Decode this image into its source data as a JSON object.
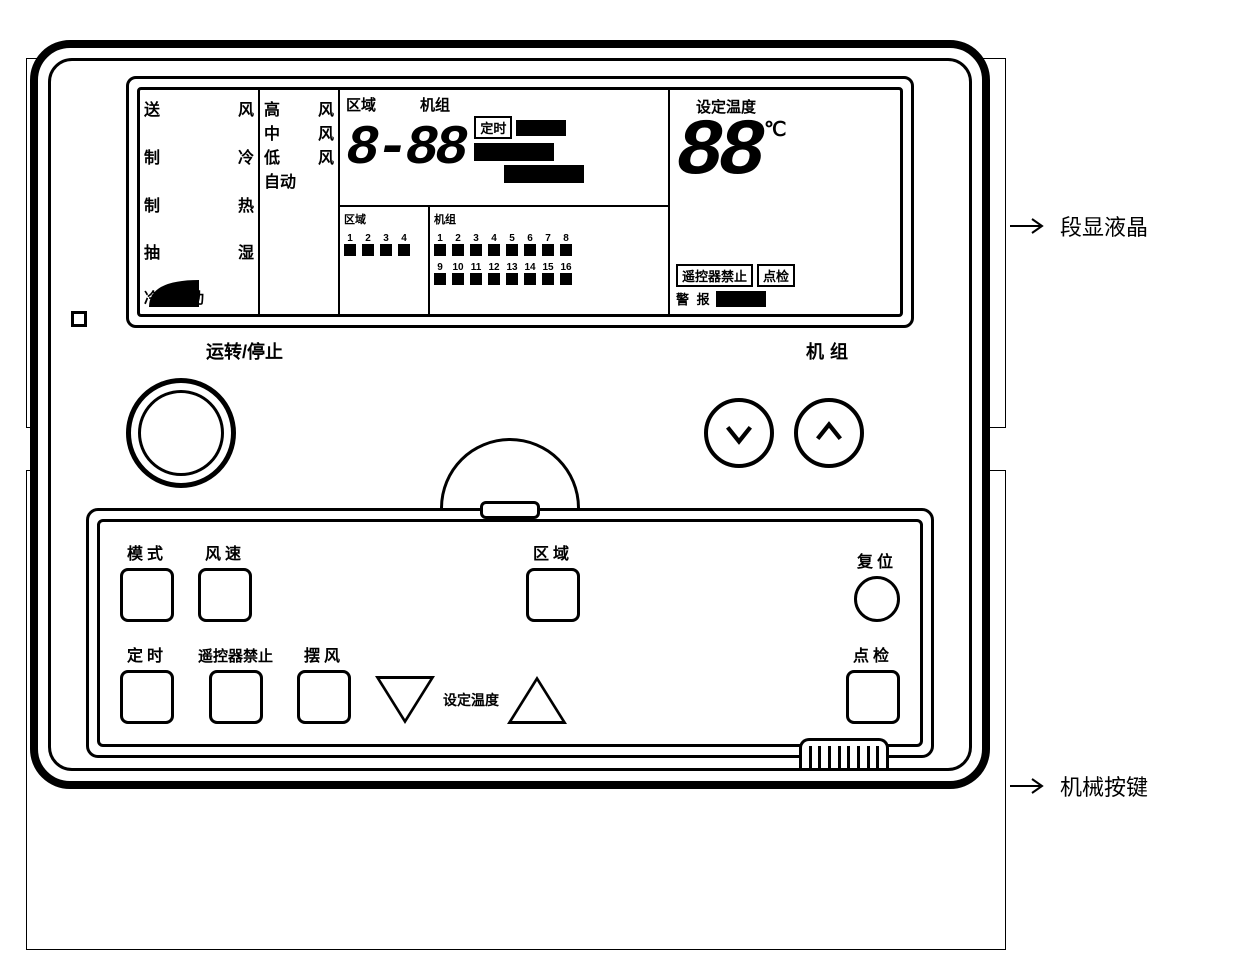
{
  "callouts": {
    "lcd": "段显液晶",
    "keys": "机械按键"
  },
  "lcd": {
    "modes": {
      "r1a": "送",
      "r1b": "风",
      "r2a": "制",
      "r2b": "冷",
      "r3a": "制",
      "r3b": "热",
      "r4a": "抽",
      "r4b": "湿",
      "r5": "冷热自动"
    },
    "fan": {
      "r1a": "高",
      "r1b": "风",
      "r2a": "中",
      "r2b": "风",
      "r3a": "低",
      "r3b": "风",
      "r4": "自动"
    },
    "zone_label": "区域",
    "unit_label": "机组",
    "timer_label": "定时",
    "zone_seg": "8-88",
    "zone_small_label": "区域",
    "unit_small_label": "机组",
    "zone_nums": [
      "1",
      "2",
      "3",
      "4"
    ],
    "unit_nums_top": [
      "1",
      "2",
      "3",
      "4",
      "5",
      "6",
      "7",
      "8"
    ],
    "unit_nums_bot": [
      "9",
      "10",
      "11",
      "12",
      "13",
      "14",
      "15",
      "16"
    ],
    "temp_label": "设定温度",
    "temp_seg": "88",
    "temp_unit": "℃",
    "remote_forbid": "遥控器禁止",
    "inspect": "点检",
    "alarm": "警  报"
  },
  "labels": {
    "run_stop": "运转/停止",
    "unit": "机组"
  },
  "lower": {
    "mode": "模式",
    "fanspeed": "风速",
    "zone": "区域",
    "reset": "复位",
    "timer": "定时",
    "remote_forbid": "遥控器禁止",
    "swing": "摆风",
    "set_temp": "设定温度",
    "inspect": "点检"
  }
}
